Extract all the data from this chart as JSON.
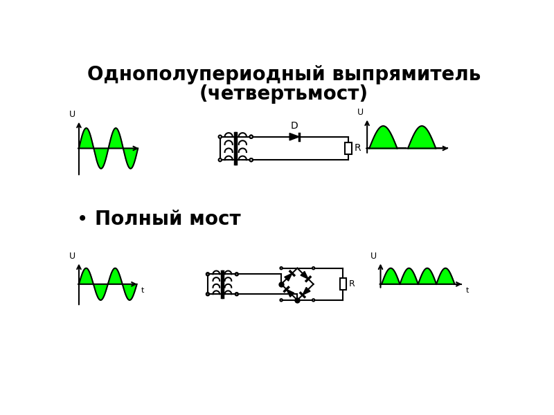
{
  "title_line1": "Однополупериодный выпрямитель",
  "title_line2": "(четвертьмост)",
  "bullet_text": "Полный мост",
  "green_fill": "#00FF00",
  "black": "#000000",
  "white": "#FFFFFF",
  "title_fontsize": 20,
  "bullet_fontsize": 20
}
